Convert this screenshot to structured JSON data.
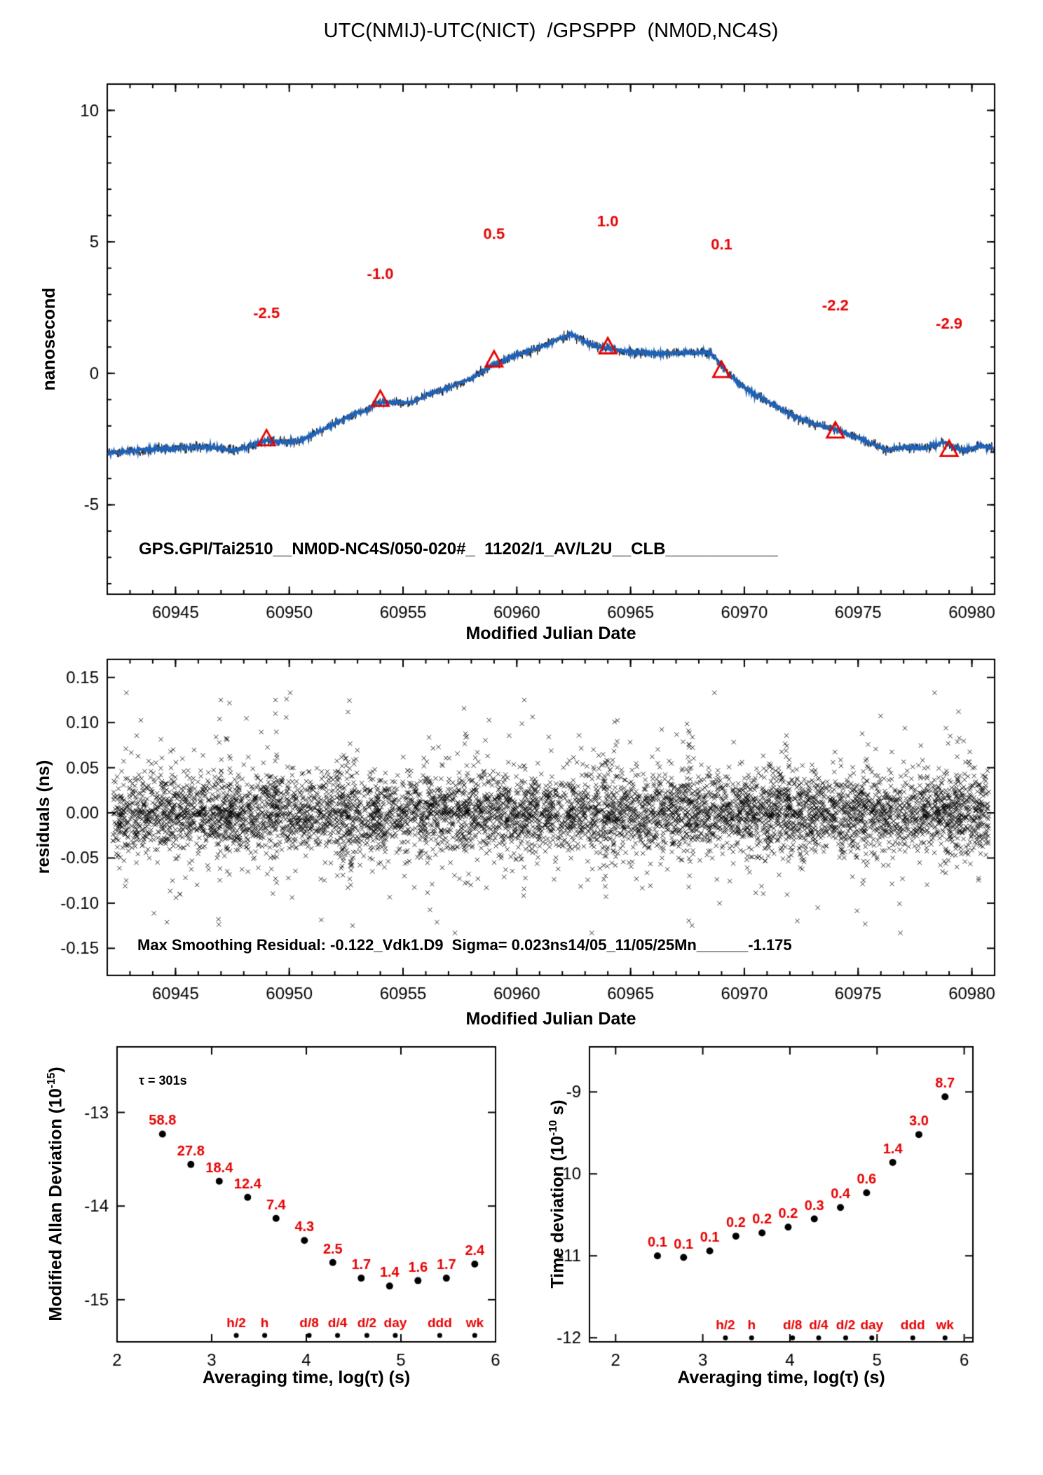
{
  "palette": {
    "red": "#e60000",
    "blue": "#1e62b8",
    "black": "#000000",
    "bg": "#ffffff"
  },
  "title": "UTC(NMIJ)-UTC(NICT)  /GPSPPP  (NM0D,NC4S)",
  "chart_data": [
    {
      "id": "phase",
      "type": "line",
      "xlabel": "Modified Julian Date",
      "ylabel": "nanosecond",
      "xlim": [
        60942,
        60981
      ],
      "ylim": [
        -8.4,
        11.0
      ],
      "xticks": {
        "values": [
          60945,
          60950,
          60955,
          60960,
          60965,
          60970,
          60975,
          60980
        ],
        "labels": [
          "60945",
          "60950",
          "60955",
          "60960",
          "60965",
          "60970",
          "60975",
          "60980"
        ]
      },
      "yticks": {
        "values": [
          -5,
          0,
          5,
          10
        ],
        "labels": [
          "-5",
          "0",
          "5",
          "10"
        ]
      },
      "xminor": 1,
      "yminor": 1,
      "anchors": [
        [
          60942,
          -3.05
        ],
        [
          60943,
          -2.95
        ],
        [
          60944,
          -2.9
        ],
        [
          60945,
          -2.85
        ],
        [
          60946,
          -2.78
        ],
        [
          60947,
          -2.85
        ],
        [
          60947.6,
          -2.92
        ],
        [
          60948.3,
          -2.78
        ],
        [
          60949,
          -2.55
        ],
        [
          60949.7,
          -2.62
        ],
        [
          60950.3,
          -2.6
        ],
        [
          60951,
          -2.35
        ],
        [
          60952,
          -1.9
        ],
        [
          60953,
          -1.5
        ],
        [
          60953.4,
          -1.42
        ],
        [
          60953.8,
          -1.12
        ],
        [
          60954.4,
          -1.1
        ],
        [
          60955.3,
          -1.12
        ],
        [
          60956,
          -0.85
        ],
        [
          60957,
          -0.55
        ],
        [
          60958,
          -0.2
        ],
        [
          60958.8,
          0.25
        ],
        [
          60959.3,
          0.45
        ],
        [
          60960,
          0.7
        ],
        [
          60961,
          1.0
        ],
        [
          60962,
          1.35
        ],
        [
          60962.4,
          1.5
        ],
        [
          60963,
          1.2
        ],
        [
          60963.6,
          1.0
        ],
        [
          60964,
          0.95
        ],
        [
          60964.6,
          0.85
        ],
        [
          60965.5,
          0.8
        ],
        [
          60966.5,
          0.73
        ],
        [
          60967.3,
          0.8
        ],
        [
          60968.2,
          0.8
        ],
        [
          60968.6,
          0.72
        ],
        [
          60969,
          0.28
        ],
        [
          60969.4,
          -0.1
        ],
        [
          60970,
          -0.55
        ],
        [
          60971,
          -1.05
        ],
        [
          60972,
          -1.55
        ],
        [
          60973,
          -1.9
        ],
        [
          60974,
          -2.15
        ],
        [
          60975,
          -2.45
        ],
        [
          60975.7,
          -2.72
        ],
        [
          60976.3,
          -2.92
        ],
        [
          60977,
          -2.8
        ],
        [
          60978,
          -2.85
        ],
        [
          60978.7,
          -2.6
        ],
        [
          60979.2,
          -2.82
        ],
        [
          60979.7,
          -2.95
        ],
        [
          60980.3,
          -2.75
        ],
        [
          60981,
          -2.85
        ]
      ],
      "noise_ns": 0.09,
      "calibration_points": [
        {
          "x": 60949,
          "y": -2.5,
          "label": "-2.5"
        },
        {
          "x": 60954,
          "y": -1.0,
          "label": "-1.0"
        },
        {
          "x": 60959,
          "y": 0.5,
          "label": "0.5"
        },
        {
          "x": 60964,
          "y": 1.0,
          "label": "1.0"
        },
        {
          "x": 60969,
          "y": 0.1,
          "label": "0.1"
        },
        {
          "x": 60974,
          "y": -2.2,
          "label": "-2.2"
        },
        {
          "x": 60979,
          "y": -2.9,
          "label": "-2.9"
        }
      ],
      "label_offset_y": 4.6,
      "annotation": "GPS.GPI/Tai2510__NM0D-NC4S/050-020#_  11202/1_AV/L2U__CLB____________"
    },
    {
      "id": "residuals",
      "type": "scatter",
      "marker": "x",
      "xlabel": "Modified Julian Date",
      "ylabel": "residuals (ns)",
      "xlim": [
        60942,
        60981
      ],
      "ylim": [
        -0.18,
        0.17
      ],
      "xticks": {
        "values": [
          60945,
          60950,
          60955,
          60960,
          60965,
          60970,
          60975,
          60980
        ],
        "labels": [
          "60945",
          "60950",
          "60955",
          "60960",
          "60965",
          "60970",
          "60975",
          "60980"
        ]
      },
      "yticks": {
        "values": [
          -0.15,
          -0.1,
          -0.05,
          0,
          0.05,
          0.1,
          0.15
        ],
        "labels": [
          "-0.15",
          "-0.10",
          "-0.05",
          "0.00",
          "0.05",
          "0.10",
          "0.15"
        ]
      },
      "xminor": 1,
      "noise": {
        "n": 6500,
        "sigma": 0.021,
        "seed": 2025,
        "clusters": [
          60946.9,
          60947.3,
          60949.4,
          60952.4,
          60952.7,
          60957.8,
          60960.3,
          60963.9,
          60964.3,
          60967.6,
          60971.9,
          60975.3,
          60978.9,
          60979.4
        ]
      },
      "annotation": "Max Smoothing Residual: -0.122_Vdk1.D9  Sigma= 0.023ns14/05_11/05/25Mn______-1.175"
    },
    {
      "id": "madev",
      "type": "scatter",
      "xlabel": "Averaging time, log(τ) (s)",
      "ylabel": {
        "base": "Modified Allan Deviation (10",
        "sup": "-15",
        "post": ")"
      },
      "xlim": [
        2,
        6
      ],
      "ylim": [
        -15.45,
        -12.3
      ],
      "xticks": {
        "values": [
          2,
          3,
          4,
          5,
          6
        ],
        "labels": [
          "2",
          "3",
          "4",
          "5",
          "6"
        ]
      },
      "yticks": {
        "values": [
          -13,
          -14,
          -15
        ],
        "labels": [
          "-13",
          "-14",
          "-15"
        ]
      },
      "tau_annotation": "τ = 301s",
      "points": {
        "x": [
          2.48,
          2.78,
          3.08,
          3.38,
          3.68,
          3.98,
          4.28,
          4.58,
          4.88,
          5.18,
          5.48,
          5.78
        ],
        "y": [
          -13.231,
          -13.556,
          -13.735,
          -13.907,
          -14.131,
          -14.367,
          -14.602,
          -14.77,
          -14.854,
          -14.796,
          -14.77,
          -14.62
        ],
        "labels": [
          "58.8",
          "27.8",
          "18.4",
          "12.4",
          "7.4",
          "4.3",
          "2.5",
          "1.7",
          "1.4",
          "1.6",
          "1.7",
          "2.4"
        ]
      },
      "time_marks": {
        "y": -15.38,
        "items": [
          {
            "label": "h/2",
            "x": 3.26
          },
          {
            "label": "h",
            "x": 3.56
          },
          {
            "label": "d/8",
            "x": 4.03
          },
          {
            "label": "d/4",
            "x": 4.33
          },
          {
            "label": "d/2",
            "x": 4.64
          },
          {
            "label": "day",
            "x": 4.94
          },
          {
            "label": "ddd",
            "x": 5.41
          },
          {
            "label": "wk",
            "x": 5.78
          }
        ]
      }
    },
    {
      "id": "tdev",
      "type": "scatter",
      "xlabel": "Averaging time, log(τ) (s)",
      "ylabel": {
        "base": "Time deviation (10",
        "sup": "-10",
        "post": " s)"
      },
      "xlim": [
        1.7,
        6.1
      ],
      "ylim": [
        -12.05,
        -8.45
      ],
      "xticks": {
        "values": [
          2,
          3,
          4,
          5,
          6
        ],
        "labels": [
          "2",
          "3",
          "4",
          "5",
          "6"
        ]
      },
      "yticks": {
        "values": [
          -9,
          -10,
          -11,
          -12
        ],
        "labels": [
          "-9",
          "-10",
          "-11",
          "-12"
        ]
      },
      "points": {
        "x": [
          2.48,
          2.78,
          3.08,
          3.38,
          3.68,
          3.98,
          4.28,
          4.58,
          4.88,
          5.18,
          5.48,
          5.78
        ],
        "y": [
          -11.0,
          -11.02,
          -10.94,
          -10.76,
          -10.72,
          -10.65,
          -10.55,
          -10.41,
          -10.23,
          -9.86,
          -9.52,
          -9.06
        ],
        "labels": [
          "0.1",
          "0.1",
          "0.1",
          "0.2",
          "0.2",
          "0.2",
          "0.3",
          "0.4",
          "0.6",
          "1.4",
          "3.0",
          "8.7"
        ]
      },
      "time_marks": {
        "y": -12.0,
        "items": [
          {
            "label": "h/2",
            "x": 3.26
          },
          {
            "label": "h",
            "x": 3.56
          },
          {
            "label": "d/8",
            "x": 4.03
          },
          {
            "label": "d/4",
            "x": 4.33
          },
          {
            "label": "d/2",
            "x": 4.64
          },
          {
            "label": "day",
            "x": 4.94
          },
          {
            "label": "ddd",
            "x": 5.41
          },
          {
            "label": "wk",
            "x": 5.78
          }
        ]
      }
    }
  ]
}
